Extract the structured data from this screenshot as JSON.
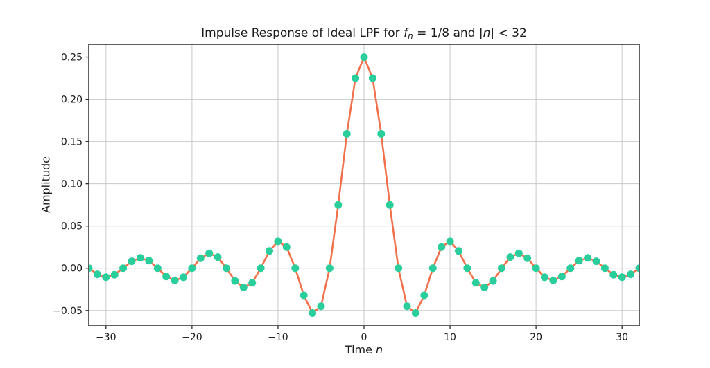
{
  "figure": {
    "title": {
      "prefix": "Impulse Response of Ideal LPF for ",
      "f_var": "f",
      "f_sub": "n",
      "mid": " = 1/8 and |",
      "n_var": "n",
      "suffix": "| < 32"
    },
    "xlabel": {
      "prefix": "Time ",
      "var": "n"
    },
    "ylabel": "Amplitude",
    "background": "#ffffff"
  },
  "chart_data": {
    "type": "line",
    "title": "Impulse Response of Ideal LPF for f_n = 1/8 and |n| < 32",
    "xlabel": "Time n",
    "ylabel": "Amplitude",
    "x": [
      -32,
      -31,
      -30,
      -29,
      -28,
      -27,
      -26,
      -25,
      -24,
      -23,
      -22,
      -21,
      -20,
      -19,
      -18,
      -17,
      -16,
      -15,
      -14,
      -13,
      -12,
      -11,
      -10,
      -9,
      -8,
      -7,
      -6,
      -5,
      -4,
      -3,
      -2,
      -1,
      0,
      1,
      2,
      3,
      4,
      5,
      6,
      7,
      8,
      9,
      10,
      11,
      12,
      13,
      14,
      15,
      16,
      17,
      18,
      19,
      20,
      21,
      22,
      23,
      24,
      25,
      26,
      27,
      28,
      29,
      30,
      31,
      32
    ],
    "values": [
      0.0,
      -0.00726,
      -0.01061,
      -0.00776,
      0.0,
      0.00834,
      0.01224,
      0.009,
      0.0,
      -0.00979,
      -0.01447,
      -0.01072,
      0.0,
      0.01185,
      0.01768,
      0.01324,
      0.0,
      -0.015,
      -0.02274,
      -0.01731,
      0.0,
      0.02046,
      0.03183,
      0.02501,
      0.0,
      -0.03215,
      -0.05305,
      -0.04502,
      0.0,
      0.07502,
      0.15915,
      0.22508,
      0.25,
      0.22508,
      0.15915,
      0.07502,
      0.0,
      -0.04502,
      -0.05305,
      -0.03215,
      0.0,
      0.02501,
      0.03183,
      0.02046,
      0.0,
      -0.01731,
      -0.02274,
      -0.015,
      0.0,
      0.01324,
      0.01768,
      0.01185,
      0.0,
      -0.01072,
      -0.01447,
      -0.00979,
      0.0,
      0.009,
      0.01224,
      0.00834,
      0.0,
      -0.00776,
      -0.01061,
      -0.00726,
      0.0
    ],
    "xlim": [
      -32,
      32
    ],
    "ylim": [
      -0.0682,
      0.2652
    ],
    "xticks": [
      {
        "v": -30,
        "label": "−30"
      },
      {
        "v": -20,
        "label": "−20"
      },
      {
        "v": -10,
        "label": "−10"
      },
      {
        "v": 0,
        "label": "0"
      },
      {
        "v": 10,
        "label": "10"
      },
      {
        "v": 20,
        "label": "20"
      },
      {
        "v": 30,
        "label": "30"
      }
    ],
    "yticks": [
      {
        "v": -0.05,
        "label": "−0.05"
      },
      {
        "v": 0.0,
        "label": "0.00"
      },
      {
        "v": 0.05,
        "label": "0.05"
      },
      {
        "v": 0.1,
        "label": "0.10"
      },
      {
        "v": 0.15,
        "label": "0.15"
      },
      {
        "v": 0.2,
        "label": "0.20"
      },
      {
        "v": 0.25,
        "label": "0.25"
      }
    ],
    "grid": true,
    "legend": "none",
    "line_color": "#f1714c",
    "marker_color": "#2ace9c",
    "grid_color": "#c9c9c9",
    "spine_color": "#2b2b2b",
    "tick_font_size": 14,
    "marker_radius": 5.5,
    "line_width": 2.6
  }
}
